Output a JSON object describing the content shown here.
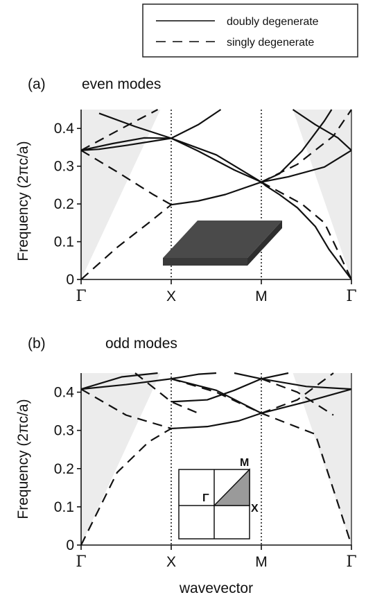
{
  "legend": {
    "solid_label": "doubly degenerate",
    "dashed_label": "singly degenerate"
  },
  "xlabel": "wavevector",
  "chart_data": [
    {
      "type": "line",
      "panel_label": "(a)",
      "title": "even modes",
      "ylabel": "Frequency (2πc/a)",
      "ylim": [
        0,
        0.45
      ],
      "yticks": [
        "0",
        "0.1",
        "0.2",
        "0.3",
        "0.4"
      ],
      "xticks": [
        "Γ",
        "X",
        "M",
        "Γ"
      ],
      "x_positions": [
        0,
        1,
        2,
        3
      ],
      "grid": false,
      "light_cone": "shaded gray",
      "inset": "slab",
      "series": [
        {
          "style": "solid",
          "points": [
            [
              0,
              0.342
            ],
            [
              0.2,
              0.345
            ],
            [
              0.5,
              0.355
            ],
            [
              1,
              0.374
            ],
            [
              1.3,
              0.34
            ],
            [
              1.7,
              0.29
            ],
            [
              2,
              0.258
            ],
            [
              2.3,
              0.272
            ],
            [
              2.7,
              0.298
            ],
            [
              3,
              0.342
            ]
          ]
        },
        {
          "style": "solid",
          "points": [
            [
              0,
              0.342
            ],
            [
              0.35,
              0.36
            ],
            [
              0.7,
              0.375
            ],
            [
              1,
              0.374
            ],
            [
              1.5,
              0.33
            ],
            [
              2,
              0.258
            ]
          ]
        },
        {
          "style": "solid",
          "points": [
            [
              0.2,
              0.44
            ],
            [
              0.6,
              0.405
            ],
            [
              1,
              0.374
            ],
            [
              1.3,
              0.41
            ],
            [
              1.55,
              0.45
            ]
          ]
        },
        {
          "style": "solid",
          "points": [
            [
              2,
              0.258
            ],
            [
              2.2,
              0.28
            ],
            [
              2.45,
              0.34
            ],
            [
              2.7,
              0.42
            ],
            [
              2.78,
              0.45
            ]
          ]
        },
        {
          "style": "solid",
          "points": [
            [
              2.35,
              0.45
            ],
            [
              2.6,
              0.41
            ],
            [
              2.85,
              0.375
            ],
            [
              3,
              0.342
            ]
          ]
        },
        {
          "style": "solid",
          "points": [
            [
              2,
              0.258
            ],
            [
              2.05,
              0.248
            ],
            [
              2.2,
              0.225
            ],
            [
              2.4,
              0.19
            ],
            [
              2.6,
              0.14
            ],
            [
              2.75,
              0.08
            ],
            [
              3,
              0
            ]
          ]
        },
        {
          "style": "solid",
          "points": [
            [
              1,
              0.198
            ],
            [
              1.3,
              0.208
            ],
            [
              1.6,
              0.225
            ],
            [
              2,
              0.258
            ]
          ]
        },
        {
          "style": "dashed",
          "points": [
            [
              0,
              0
            ],
            [
              0.4,
              0.085
            ],
            [
              0.75,
              0.15
            ],
            [
              1,
              0.198
            ]
          ]
        },
        {
          "style": "dashed",
          "points": [
            [
              0,
              0.342
            ],
            [
              0.4,
              0.285
            ],
            [
              0.8,
              0.225
            ],
            [
              1,
              0.198
            ]
          ]
        },
        {
          "style": "dashed",
          "points": [
            [
              0,
              0.342
            ],
            [
              0.45,
              0.4
            ],
            [
              0.85,
              0.45
            ]
          ]
        },
        {
          "style": "dashed",
          "points": [
            [
              2,
              0.258
            ],
            [
              2.4,
              0.305
            ],
            [
              2.8,
              0.38
            ],
            [
              3,
              0.45
            ]
          ]
        },
        {
          "style": "dashed",
          "points": [
            [
              2,
              0.258
            ],
            [
              2.45,
              0.2
            ],
            [
              2.7,
              0.15
            ],
            [
              3,
              0
            ]
          ]
        }
      ]
    },
    {
      "type": "line",
      "panel_label": "(b)",
      "title": "odd modes",
      "ylabel": "Frequency (2πc/a)",
      "ylim": [
        0,
        0.45
      ],
      "yticks": [
        "0",
        "0.1",
        "0.2",
        "0.3",
        "0.4"
      ],
      "xticks": [
        "Γ",
        "X",
        "M",
        "Γ"
      ],
      "x_positions": [
        0,
        1,
        2,
        3
      ],
      "grid": false,
      "light_cone": "shaded gray",
      "inset": "Brillouin zone",
      "inset_labels": {
        "gamma": "Γ",
        "x": "X",
        "m": "M"
      },
      "series": [
        {
          "style": "solid",
          "points": [
            [
              0,
              0.408
            ],
            [
              0.5,
              0.42
            ],
            [
              1,
              0.435
            ],
            [
              1.5,
              0.405
            ],
            [
              2,
              0.345
            ],
            [
              2.5,
              0.375
            ],
            [
              3,
              0.408
            ]
          ]
        },
        {
          "style": "solid",
          "points": [
            [
              0,
              0.408
            ],
            [
              0.45,
              0.44
            ],
            [
              0.85,
              0.45
            ]
          ]
        },
        {
          "style": "solid",
          "points": [
            [
              1,
              0.375
            ],
            [
              1.4,
              0.38
            ],
            [
              1.7,
              0.405
            ],
            [
              2,
              0.435
            ],
            [
              2.5,
              0.415
            ],
            [
              3,
              0.408
            ]
          ]
        },
        {
          "style": "solid",
          "points": [
            [
              1,
              0.305
            ],
            [
              1.4,
              0.31
            ],
            [
              1.75,
              0.325
            ],
            [
              2,
              0.345
            ]
          ]
        },
        {
          "style": "solid",
          "points": [
            [
              1,
              0.435
            ],
            [
              1.3,
              0.447
            ],
            [
              1.5,
              0.45
            ]
          ]
        },
        {
          "style": "solid",
          "points": [
            [
              1.7,
              0.45
            ],
            [
              2,
              0.435
            ],
            [
              2.3,
              0.45
            ]
          ]
        },
        {
          "style": "dashed",
          "points": [
            [
              0,
              0
            ],
            [
              0.4,
              0.19
            ],
            [
              0.75,
              0.27
            ],
            [
              1,
              0.305
            ]
          ]
        },
        {
          "style": "dashed",
          "points": [
            [
              0,
              0.408
            ],
            [
              0.5,
              0.34
            ],
            [
              1,
              0.305
            ]
          ]
        },
        {
          "style": "dashed",
          "points": [
            [
              0.6,
              0.45
            ],
            [
              1,
              0.375
            ],
            [
              1.3,
              0.345
            ]
          ]
        },
        {
          "style": "dashed",
          "points": [
            [
              1,
              0.435
            ],
            [
              1.5,
              0.4
            ],
            [
              2,
              0.345
            ],
            [
              2.6,
              0.29
            ],
            [
              3,
              0
            ]
          ]
        },
        {
          "style": "dashed",
          "points": [
            [
              2,
              0.345
            ],
            [
              2.4,
              0.38
            ],
            [
              2.8,
              0.45
            ]
          ]
        },
        {
          "style": "dashed",
          "points": [
            [
              2,
              0.435
            ],
            [
              2.4,
              0.4
            ],
            [
              2.8,
              0.34
            ]
          ]
        }
      ]
    }
  ]
}
